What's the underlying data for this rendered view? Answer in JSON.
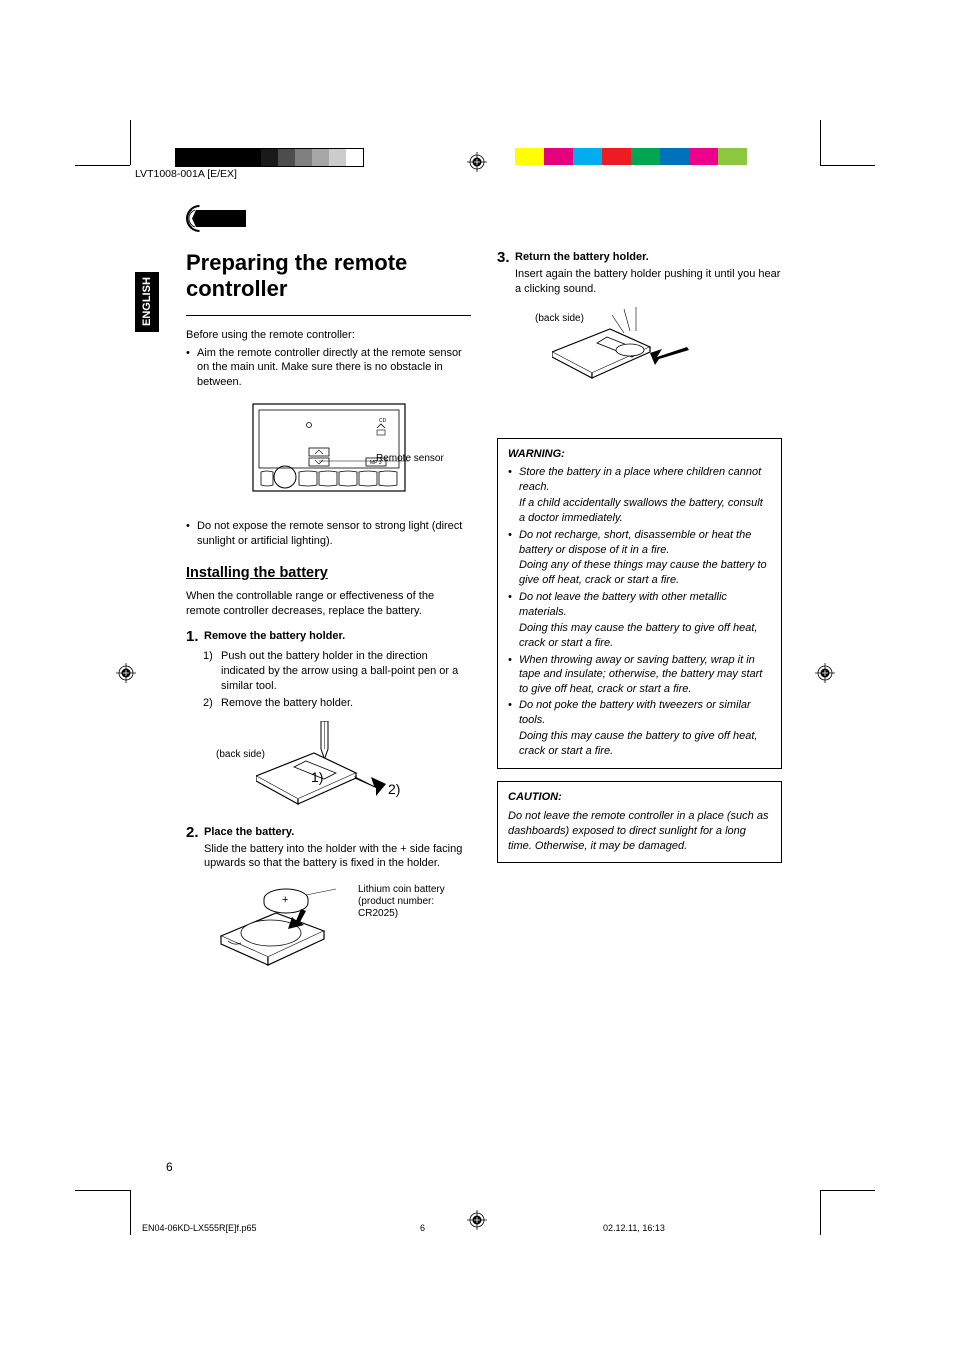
{
  "document_code": "LVT1008-001A",
  "document_suffix": "[E/EX]",
  "language": "ENGLISH",
  "page_number": "6",
  "colorbar_left": [
    "#000000",
    "#000000",
    "#000000",
    "#000000",
    "#000000",
    "#1a1a1a",
    "#4d4d4d",
    "#808080",
    "#a6a6a6",
    "#cccccc",
    "#ffffff"
  ],
  "colorbar_right": [
    "#ffff00",
    "#e6007e",
    "#00aeef",
    "#ed1c24",
    "#00a651",
    "#0072bc",
    "#ec008c",
    "#8dc63f"
  ],
  "title": "Preparing the remote controller",
  "intro": "Before using the remote controller:",
  "bullet1": "Aim the remote controller directly at the remote sensor on the main unit. Make sure there is no obstacle in between.",
  "fig1_label": "Remote sensor",
  "bullet2": "Do not expose the remote sensor to strong light (direct sunlight or artificial lighting).",
  "section_installing": "Installing the battery",
  "installing_intro": "When the controllable range or effectiveness of the remote controller decreases, replace the battery.",
  "step1": {
    "num": "1.",
    "title": "Remove the battery holder.",
    "sub1_num": "1)",
    "sub1": "Push out the battery holder in the direction indicated by the arrow using a ball-point pen or a similar tool.",
    "sub2_num": "2)",
    "sub2": "Remove the battery holder."
  },
  "fig2_back": "(back side)",
  "fig2_l1": "1)",
  "fig2_l2": "2)",
  "step2": {
    "num": "2.",
    "title": "Place the battery.",
    "text": "Slide the battery into the holder with the + side facing upwards so that the battery is fixed in the holder."
  },
  "fig3_label1": "Lithium coin battery",
  "fig3_label2": "(product number:",
  "fig3_label3": "CR2025)",
  "step3": {
    "num": "3.",
    "title": "Return the battery holder.",
    "text": "Insert again the battery holder pushing it until you hear a clicking sound."
  },
  "fig4_back": "(back side)",
  "warning_title": "WARNING:",
  "warning_items": [
    {
      "b": "Store the battery in a place where children cannot reach.",
      "s": "If a child accidentally swallows the battery, consult a doctor immediately."
    },
    {
      "b": "Do not recharge, short, disassemble or heat the battery or dispose of it in a fire.",
      "s": "Doing any of these things may cause the battery to give off heat, crack or start a fire."
    },
    {
      "b": "Do not leave the battery with other metallic materials.",
      "s": "Doing this may cause the battery to give off heat, crack or start a fire."
    },
    {
      "b": "When throwing away or saving battery, wrap it in tape and insulate; otherwise, the battery may start to give off heat, crack or start a fire.",
      "s": ""
    },
    {
      "b": "Do not poke the battery with tweezers or similar tools.",
      "s": "Doing this may cause the battery to give off heat, crack or start a fire."
    }
  ],
  "caution_title": "CAUTION:",
  "caution_text": "Do not leave the remote controller in a place (such as dashboards) exposed to direct sunlight for a long time. Otherwise, it may be damaged.",
  "footer_left": "EN04-06KD-LX555R[E]f.p65",
  "footer_mid": "6",
  "footer_right": "02.12.11, 16:13"
}
